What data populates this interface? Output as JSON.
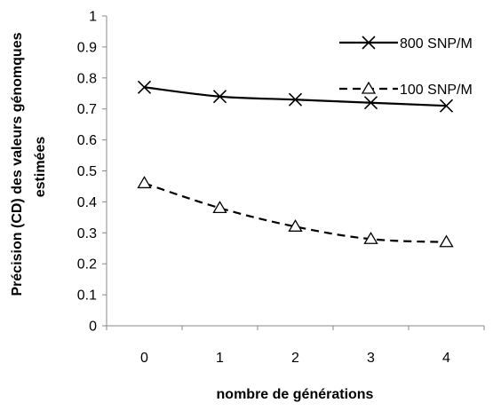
{
  "chart_data": {
    "type": "line",
    "title": "",
    "xlabel": "nombre de générations",
    "ylabel_lines": [
      "Précision (CD) des valeurs génomques",
      "estimées"
    ],
    "categories": [
      "0",
      "1",
      "2",
      "3",
      "4"
    ],
    "x": [
      0,
      1,
      2,
      3,
      4
    ],
    "ylim": [
      0,
      1
    ],
    "yticks": [
      0,
      0.1,
      0.2,
      0.3,
      0.4,
      0.5,
      0.6,
      0.7,
      0.8,
      0.9,
      1
    ],
    "ytick_labels": [
      "0",
      "0.1",
      "0.2",
      "0.3",
      "0.4",
      "0.5",
      "0.6",
      "0.7",
      "0.8",
      "0.9",
      "1"
    ],
    "grid": false,
    "legend_position": "top-right",
    "series": [
      {
        "name": "800 SNP/M",
        "values": [
          0.77,
          0.74,
          0.73,
          0.72,
          0.71
        ],
        "marker": "x",
        "line_style": "solid",
        "color": "#000000"
      },
      {
        "name": "100 SNP/M",
        "values": [
          0.46,
          0.38,
          0.32,
          0.28,
          0.27
        ],
        "marker": "triangle",
        "line_style": "dashed",
        "color": "#000000"
      }
    ]
  }
}
